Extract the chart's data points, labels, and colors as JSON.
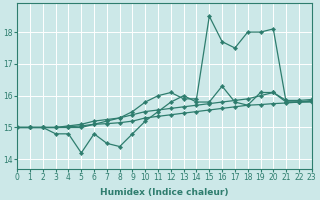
{
  "x": [
    0,
    1,
    2,
    3,
    4,
    5,
    6,
    7,
    8,
    9,
    10,
    11,
    12,
    13,
    14,
    15,
    16,
    17,
    18,
    19,
    20,
    21,
    22,
    23
  ],
  "line_noisy": [
    15.0,
    15.0,
    15.0,
    14.8,
    14.8,
    14.2,
    14.8,
    14.5,
    14.4,
    14.8,
    15.2,
    15.5,
    15.8,
    16.0,
    15.8,
    15.8,
    16.3,
    15.8,
    15.7,
    16.1,
    16.1,
    15.8,
    15.8,
    15.8
  ],
  "line_spike": [
    15.0,
    15.0,
    15.0,
    15.0,
    15.0,
    15.0,
    15.1,
    15.2,
    15.3,
    15.5,
    15.8,
    16.0,
    16.1,
    15.9,
    15.9,
    18.5,
    17.7,
    17.5,
    18.0,
    18.0,
    18.1,
    15.8,
    15.8,
    15.85
  ],
  "line_mid": [
    15.0,
    15.0,
    15.0,
    15.0,
    15.05,
    15.1,
    15.2,
    15.25,
    15.3,
    15.4,
    15.5,
    15.55,
    15.6,
    15.65,
    15.7,
    15.75,
    15.8,
    15.85,
    15.9,
    16.0,
    16.1,
    15.85,
    15.85,
    15.88
  ],
  "line_low": [
    15.0,
    15.0,
    15.0,
    15.0,
    15.02,
    15.05,
    15.1,
    15.12,
    15.15,
    15.2,
    15.3,
    15.35,
    15.4,
    15.45,
    15.5,
    15.55,
    15.6,
    15.65,
    15.7,
    15.72,
    15.75,
    15.77,
    15.8,
    15.82
  ],
  "line_color": "#2e7d6e",
  "bg_color": "#cce8e8",
  "grid_color": "#ffffff",
  "xlabel": "Humidex (Indice chaleur)",
  "ylim": [
    13.7,
    18.9
  ],
  "xlim": [
    0,
    23
  ],
  "yticks": [
    14,
    15,
    16,
    17,
    18
  ],
  "xticks": [
    0,
    1,
    2,
    3,
    4,
    5,
    6,
    7,
    8,
    9,
    10,
    11,
    12,
    13,
    14,
    15,
    16,
    17,
    18,
    19,
    20,
    21,
    22,
    23
  ],
  "xtick_labels": [
    "0",
    "1",
    "2",
    "3",
    "4",
    "5",
    "6",
    "7",
    "8",
    "9",
    "10",
    "11",
    "12",
    "13",
    "14",
    "15",
    "16",
    "17",
    "18",
    "19",
    "20",
    "21",
    "22",
    "23"
  ],
  "tick_fontsize": 5.5,
  "label_fontsize": 6.5
}
